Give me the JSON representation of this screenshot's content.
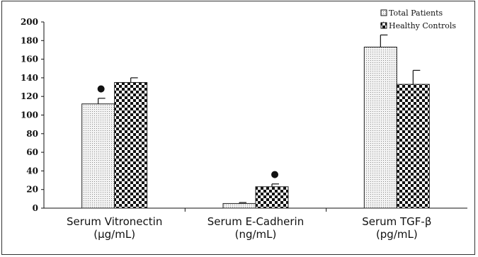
{
  "chart_data": {
    "type": "bar",
    "title": "",
    "xlabel": "",
    "ylabel": "",
    "ylim": [
      0,
      200
    ],
    "yticks": [
      0,
      20,
      40,
      60,
      80,
      100,
      120,
      140,
      160,
      180,
      200
    ],
    "grid": false,
    "legend_position": "top-right",
    "categories": [
      [
        "Serum Vitronectin",
        "(μg/mL)"
      ],
      [
        "Serum E-Cadherin",
        "(ng/mL)"
      ],
      [
        "Serum TGF-β",
        "(pg/mL)"
      ]
    ],
    "series": [
      {
        "name": "Total Patients",
        "pattern": "dots",
        "values": [
          112,
          5,
          173
        ],
        "errors": [
          6,
          1,
          13
        ]
      },
      {
        "name": "Healthy Controls",
        "pattern": "checker",
        "values": [
          135,
          23,
          133
        ],
        "errors": [
          5,
          3,
          15
        ]
      }
    ],
    "markers": [
      {
        "category": 0,
        "series": 0,
        "symbol": "●"
      },
      {
        "category": 1,
        "series": 1,
        "symbol": "●"
      },
      {
        "category": 2,
        "series": 0,
        "symbol": "★"
      }
    ],
    "colors": {
      "axis": "#111111",
      "bar_edge": "#222222",
      "dots_bg": "#f3f3f3",
      "checker": "#111111"
    }
  }
}
